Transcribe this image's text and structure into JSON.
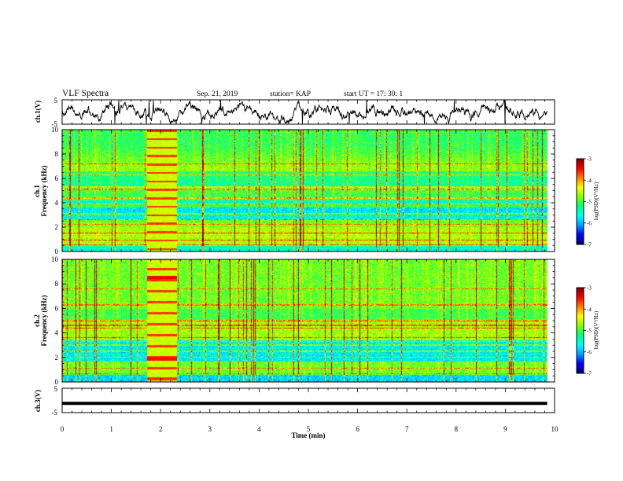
{
  "header": {
    "title": "VLF Spectra",
    "date": "Sep. 21, 2019",
    "station": "station= KAP",
    "start": "start  UT =   17: 30: 1"
  },
  "chart_data": [
    {
      "id": "ch1-waveform",
      "type": "line",
      "ylabel": "ch.1(V)",
      "ylim": [
        -5,
        5
      ],
      "yticks": [
        "5",
        "-5"
      ],
      "xlim": [
        0,
        10
      ],
      "data_end_min": 9.85
    },
    {
      "id": "ch1-spectrogram",
      "type": "heatmap",
      "ylabel": [
        "ch.1",
        "Frequency (kHz)"
      ],
      "ylim": [
        0,
        10
      ],
      "yticks": [
        "0",
        "2",
        "4",
        "6",
        "8",
        "10"
      ],
      "xlim": [
        0,
        10
      ],
      "data_end_min": 9.85,
      "interference_block_min": [
        1.73,
        2.33
      ],
      "colorbar": {
        "label": "log(PSD)(V²/Hz)",
        "ticks": [
          "-3",
          "-4",
          "-5",
          "-6",
          "-7"
        ],
        "range": [
          -7,
          -3
        ]
      }
    },
    {
      "id": "ch2-spectrogram",
      "type": "heatmap",
      "ylabel": [
        "ch.2",
        "Frequency (kHz)"
      ],
      "ylim": [
        0,
        10
      ],
      "yticks": [
        "0",
        "2",
        "4",
        "6",
        "8",
        "10"
      ],
      "xlim": [
        0,
        10
      ],
      "data_end_min": 9.85,
      "interference_block_min": [
        1.73,
        2.33
      ],
      "colorbar": {
        "label": "log(PSD)(V²/Hz)",
        "ticks": [
          "-3",
          "-4",
          "-5",
          "-6",
          "-7"
        ],
        "range": [
          -7,
          -3
        ]
      }
    },
    {
      "id": "ch3-waveform",
      "type": "line",
      "ylabel": "ch.3(V)",
      "ylim": [
        -5,
        5
      ],
      "yticks": [
        "5",
        "-5"
      ],
      "xlim": [
        0,
        10
      ],
      "constant_value": -1.2,
      "data_end_min": 9.85
    }
  ],
  "xaxis": {
    "label": "Time (min)",
    "ticks": [
      "0",
      "1",
      "2",
      "3",
      "4",
      "5",
      "6",
      "7",
      "8",
      "9",
      "10"
    ]
  },
  "colors": {
    "colormap": [
      "#000070",
      "#0000ff",
      "#00a0ff",
      "#00ffff",
      "#00ff80",
      "#80ff00",
      "#ffff00",
      "#ff8000",
      "#ff0000",
      "#800000"
    ]
  }
}
